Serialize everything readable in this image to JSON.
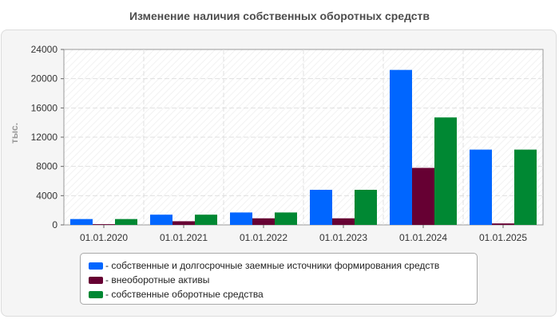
{
  "chart_data": {
    "type": "bar",
    "title": "Изменение наличия собственных оборотных средств",
    "ylabel": "тыс.",
    "xlabel": "",
    "categories": [
      "01.01.2020",
      "01.01.2021",
      "01.01.2022",
      "01.01.2023",
      "01.01.2024",
      "01.01.2025"
    ],
    "ylim": [
      0,
      24000
    ],
    "yticks": [
      0,
      4000,
      8000,
      12000,
      16000,
      20000,
      24000
    ],
    "grid": true,
    "legend_position": "bottom",
    "series": [
      {
        "name": "- собственные и долгосрочные заемные источники формирования средств",
        "color": "#0066ff",
        "values": [
          800,
          1400,
          1700,
          4800,
          21200,
          10300
        ]
      },
      {
        "name": "- внеоборотные активы",
        "color": "#660033",
        "values": [
          100,
          500,
          900,
          900,
          7800,
          200
        ]
      },
      {
        "name": "- собственные оборотные средства",
        "color": "#008833",
        "values": [
          800,
          1400,
          1700,
          4800,
          14700,
          10300
        ]
      }
    ]
  }
}
